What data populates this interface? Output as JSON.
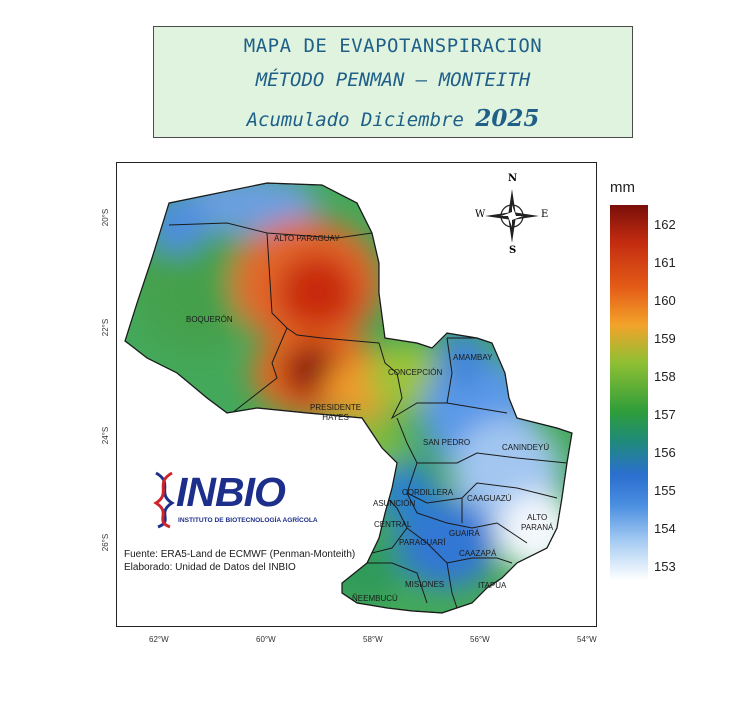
{
  "title": {
    "line1": "MAPA DE EVAPOTANSPIRACION",
    "line2": "MÉTODO PENMAN – MONTEITH",
    "line3_prefix": "Acumulado Diciembre",
    "line3_year": "2025"
  },
  "map": {
    "departments": [
      {
        "label": "ALTO PARAGUAY"
      },
      {
        "label": "BOQUERÓN"
      },
      {
        "label": "PRESIDENTE\nHAYES"
      },
      {
        "label": "CONCEPCIÓN"
      },
      {
        "label": "AMAMBAY"
      },
      {
        "label": "SAN PEDRO"
      },
      {
        "label": "CANINDEYÚ"
      },
      {
        "label": "CORDILLERA"
      },
      {
        "label": "CAAGUAZÚ"
      },
      {
        "label": "ASUNCIÓN"
      },
      {
        "label": "CENTRAL"
      },
      {
        "label": "GUAIRÁ"
      },
      {
        "label": "ALTO\nPARANÁ"
      },
      {
        "label": "PARAGUARÍ"
      },
      {
        "label": "CAAZAPÁ"
      },
      {
        "label": "MISIONES"
      },
      {
        "label": "ITAPÚA"
      },
      {
        "label": "ÑEEMBUCÚ"
      }
    ],
    "lat_ticks": [
      "20°S",
      "22°S",
      "24°S",
      "26°S"
    ],
    "lon_ticks": [
      "62°W",
      "60°W",
      "58°W",
      "56°W",
      "54°W"
    ],
    "compass": {
      "n": "N",
      "s": "S",
      "e": "E",
      "w": "W"
    }
  },
  "colorbar": {
    "unit": "mm",
    "ticks": [
      "162",
      "161",
      "160",
      "159",
      "158",
      "157",
      "156",
      "155",
      "154",
      "153"
    ]
  },
  "logo": {
    "name": "INBIO",
    "subtitle": "INSTITUTO DE BIOTECNOLOGÍA AGRÍCOLA"
  },
  "credits": {
    "source": "Fuente: ERA5-Land de ECMWF (Penman-Monteith)",
    "author": "Elaborado: Unidad de Datos del INBIO"
  }
}
